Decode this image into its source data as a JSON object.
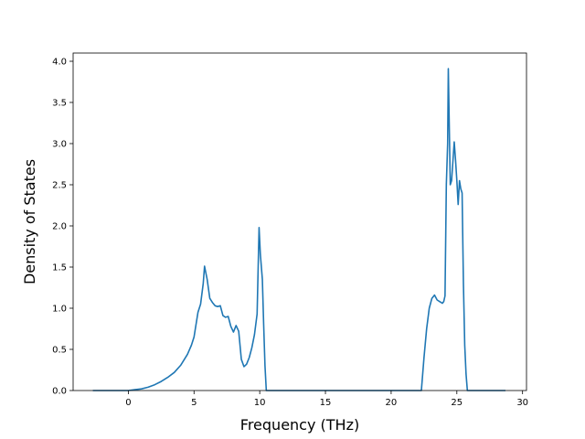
{
  "chart_data": {
    "type": "line",
    "title": "",
    "xlabel": "Frequency (THz)",
    "ylabel": "Density of States",
    "xlim": [
      -4.2,
      30.3
    ],
    "ylim": [
      0,
      4.1
    ],
    "x_ticks": [
      0,
      5,
      10,
      15,
      20,
      25,
      30
    ],
    "x_tick_labels": [
      "0",
      "5",
      "10",
      "15",
      "20",
      "25",
      "30"
    ],
    "y_ticks": [
      0.0,
      0.5,
      1.0,
      1.5,
      2.0,
      2.5,
      3.0,
      3.5,
      4.0
    ],
    "y_tick_labels": [
      "0.0",
      "0.5",
      "1.0",
      "1.5",
      "2.0",
      "2.5",
      "3.0",
      "3.5",
      "4.0"
    ],
    "grid": false,
    "legend": "none",
    "series": [
      {
        "color": "#1f77b4",
        "x": [
          -2.7,
          0.0,
          0.5,
          1.0,
          1.5,
          2.0,
          2.5,
          3.0,
          3.5,
          4.0,
          4.5,
          4.8,
          5.0,
          5.1,
          5.3,
          5.5,
          5.7,
          5.8,
          6.0,
          6.2,
          6.4,
          6.6,
          6.8,
          7.0,
          7.2,
          7.4,
          7.6,
          7.8,
          8.0,
          8.2,
          8.4,
          8.6,
          8.8,
          9.0,
          9.2,
          9.4,
          9.6,
          9.8,
          9.95,
          10.05,
          10.2,
          10.3,
          10.4,
          10.5,
          10.6,
          12.0,
          14.0,
          16.0,
          18.0,
          20.0,
          22.0,
          22.3,
          22.5,
          22.7,
          22.9,
          23.1,
          23.3,
          23.5,
          23.7,
          23.9,
          24.0,
          24.1,
          24.2,
          24.3,
          24.35,
          24.5,
          24.6,
          24.8,
          24.9,
          25.0,
          25.1,
          25.2,
          25.3,
          25.4,
          25.5,
          25.6,
          25.7,
          25.8,
          25.9,
          26.0,
          26.2,
          27.0,
          28.7
        ],
        "y": [
          0.0,
          0.0,
          0.01,
          0.02,
          0.04,
          0.07,
          0.11,
          0.16,
          0.22,
          0.31,
          0.44,
          0.55,
          0.65,
          0.75,
          0.95,
          1.05,
          1.3,
          1.51,
          1.35,
          1.12,
          1.07,
          1.03,
          1.02,
          1.03,
          0.91,
          0.89,
          0.9,
          0.78,
          0.71,
          0.79,
          0.72,
          0.38,
          0.29,
          0.32,
          0.4,
          0.52,
          0.68,
          0.93,
          1.98,
          1.65,
          1.35,
          0.8,
          0.3,
          0.0,
          0.0,
          0.0,
          0.0,
          0.0,
          0.0,
          0.0,
          0.0,
          0.0,
          0.4,
          0.75,
          1.0,
          1.12,
          1.16,
          1.1,
          1.08,
          1.06,
          1.08,
          1.15,
          2.5,
          3.0,
          3.91,
          2.5,
          2.55,
          3.02,
          2.8,
          2.55,
          2.26,
          2.55,
          2.45,
          2.4,
          1.3,
          0.55,
          0.2,
          0.0,
          0.0,
          0.0,
          0.0,
          0.0,
          0.0
        ]
      }
    ]
  }
}
